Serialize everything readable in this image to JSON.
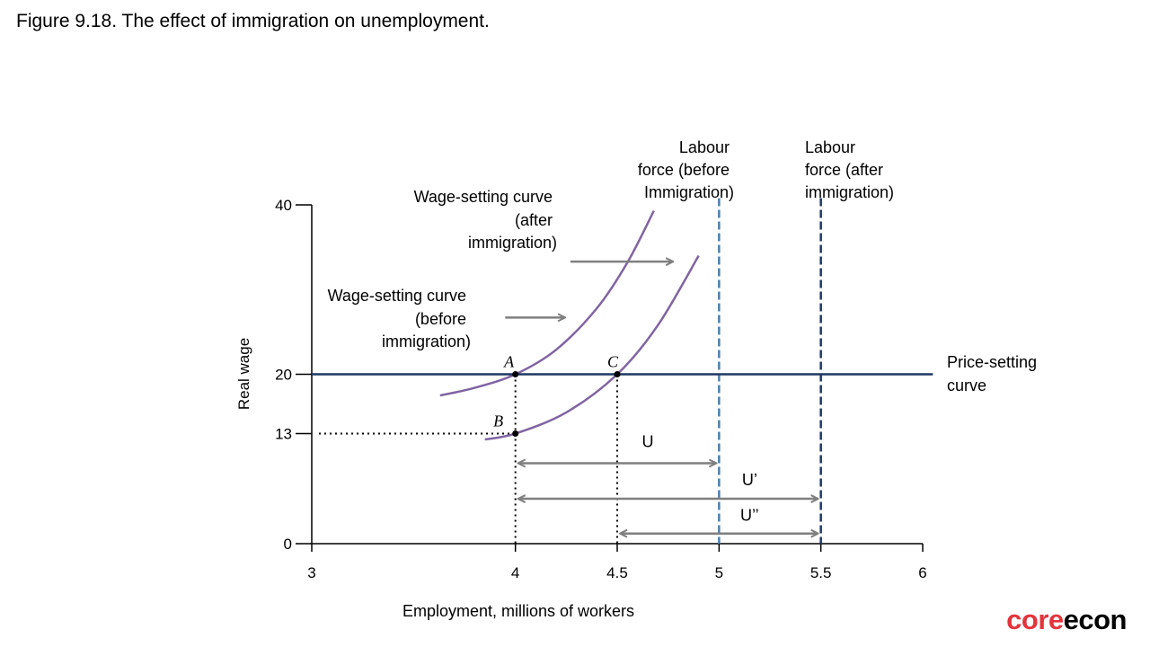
{
  "page_title": "Figure 9.18. The effect of immigration on unemployment.",
  "logo": {
    "part1": "core",
    "part2": "econ"
  },
  "colors": {
    "wage_setting": "#8064a2",
    "price_setting": "#1f3864",
    "labour_force_before": "#4a7fb0",
    "labour_force_after": "#1f3864",
    "arrows": "#7f7f7f",
    "logo_red": "#e3343d"
  },
  "chart_data": {
    "type": "line",
    "xlabel": "Employment, millions of workers",
    "ylabel": "Real wage",
    "xlim": [
      3,
      6
    ],
    "ylim": [
      0,
      40
    ],
    "xticks": [
      3,
      4,
      4.5,
      5,
      5.5,
      6
    ],
    "xtick_labels": [
      "3",
      "4",
      "4.5",
      "5",
      "5.5",
      "6"
    ],
    "yticks": [
      0,
      13,
      20,
      40
    ],
    "ytick_labels": [
      "0",
      "13",
      "20",
      "40"
    ],
    "series": [
      {
        "name": "Wage-setting curve (before immigration)",
        "label_lines": [
          "Wage-setting curve",
          "(before",
          "immigration)"
        ],
        "points": [
          [
            3.63,
            17.5
          ],
          [
            3.8,
            18.4
          ],
          [
            4.0,
            20.0
          ],
          [
            4.2,
            22.9
          ],
          [
            4.4,
            27.8
          ],
          [
            4.55,
            33.2
          ],
          [
            4.68,
            39.3
          ]
        ]
      },
      {
        "name": "Wage-setting curve (after immigration)",
        "label_lines": [
          "Wage-setting curve",
          "(after",
          "immigration)"
        ],
        "points": [
          [
            3.85,
            12.3
          ],
          [
            4.0,
            13.0
          ],
          [
            4.25,
            15.5
          ],
          [
            4.5,
            20.0
          ],
          [
            4.7,
            25.8
          ],
          [
            4.9,
            34.0
          ]
        ]
      },
      {
        "name": "Price-setting curve",
        "label_lines": [
          "Price-setting",
          "curve"
        ],
        "points": [
          [
            3.0,
            20.0
          ],
          [
            6.05,
            20.0
          ]
        ]
      },
      {
        "name": "Labour force (before Immigration)",
        "label_lines": [
          "Labour",
          "force (before",
          "Immigration)"
        ],
        "x": 5.0
      },
      {
        "name": "Labour force (after immigration)",
        "label_lines": [
          "Labour",
          "force (after",
          "immigration)"
        ],
        "x": 5.5
      }
    ],
    "points": [
      {
        "label": "A",
        "x": 4.0,
        "y": 20
      },
      {
        "label": "B",
        "x": 4.0,
        "y": 13
      },
      {
        "label": "C",
        "x": 4.5,
        "y": 20
      }
    ],
    "spans": [
      {
        "label": "U",
        "from": 4.0,
        "to": 5.0,
        "y": 9.5
      },
      {
        "label": "U’",
        "from": 4.0,
        "to": 5.5,
        "y": 5.3
      },
      {
        "label": "U’’",
        "from": 4.5,
        "to": 5.5,
        "y": 1.2
      }
    ],
    "shift_arrows": [
      {
        "from": [
          4.27,
          33.3
        ],
        "to": [
          4.77,
          33.3
        ]
      },
      {
        "from": [
          3.95,
          26.7
        ],
        "to": [
          4.24,
          26.7
        ]
      }
    ]
  }
}
